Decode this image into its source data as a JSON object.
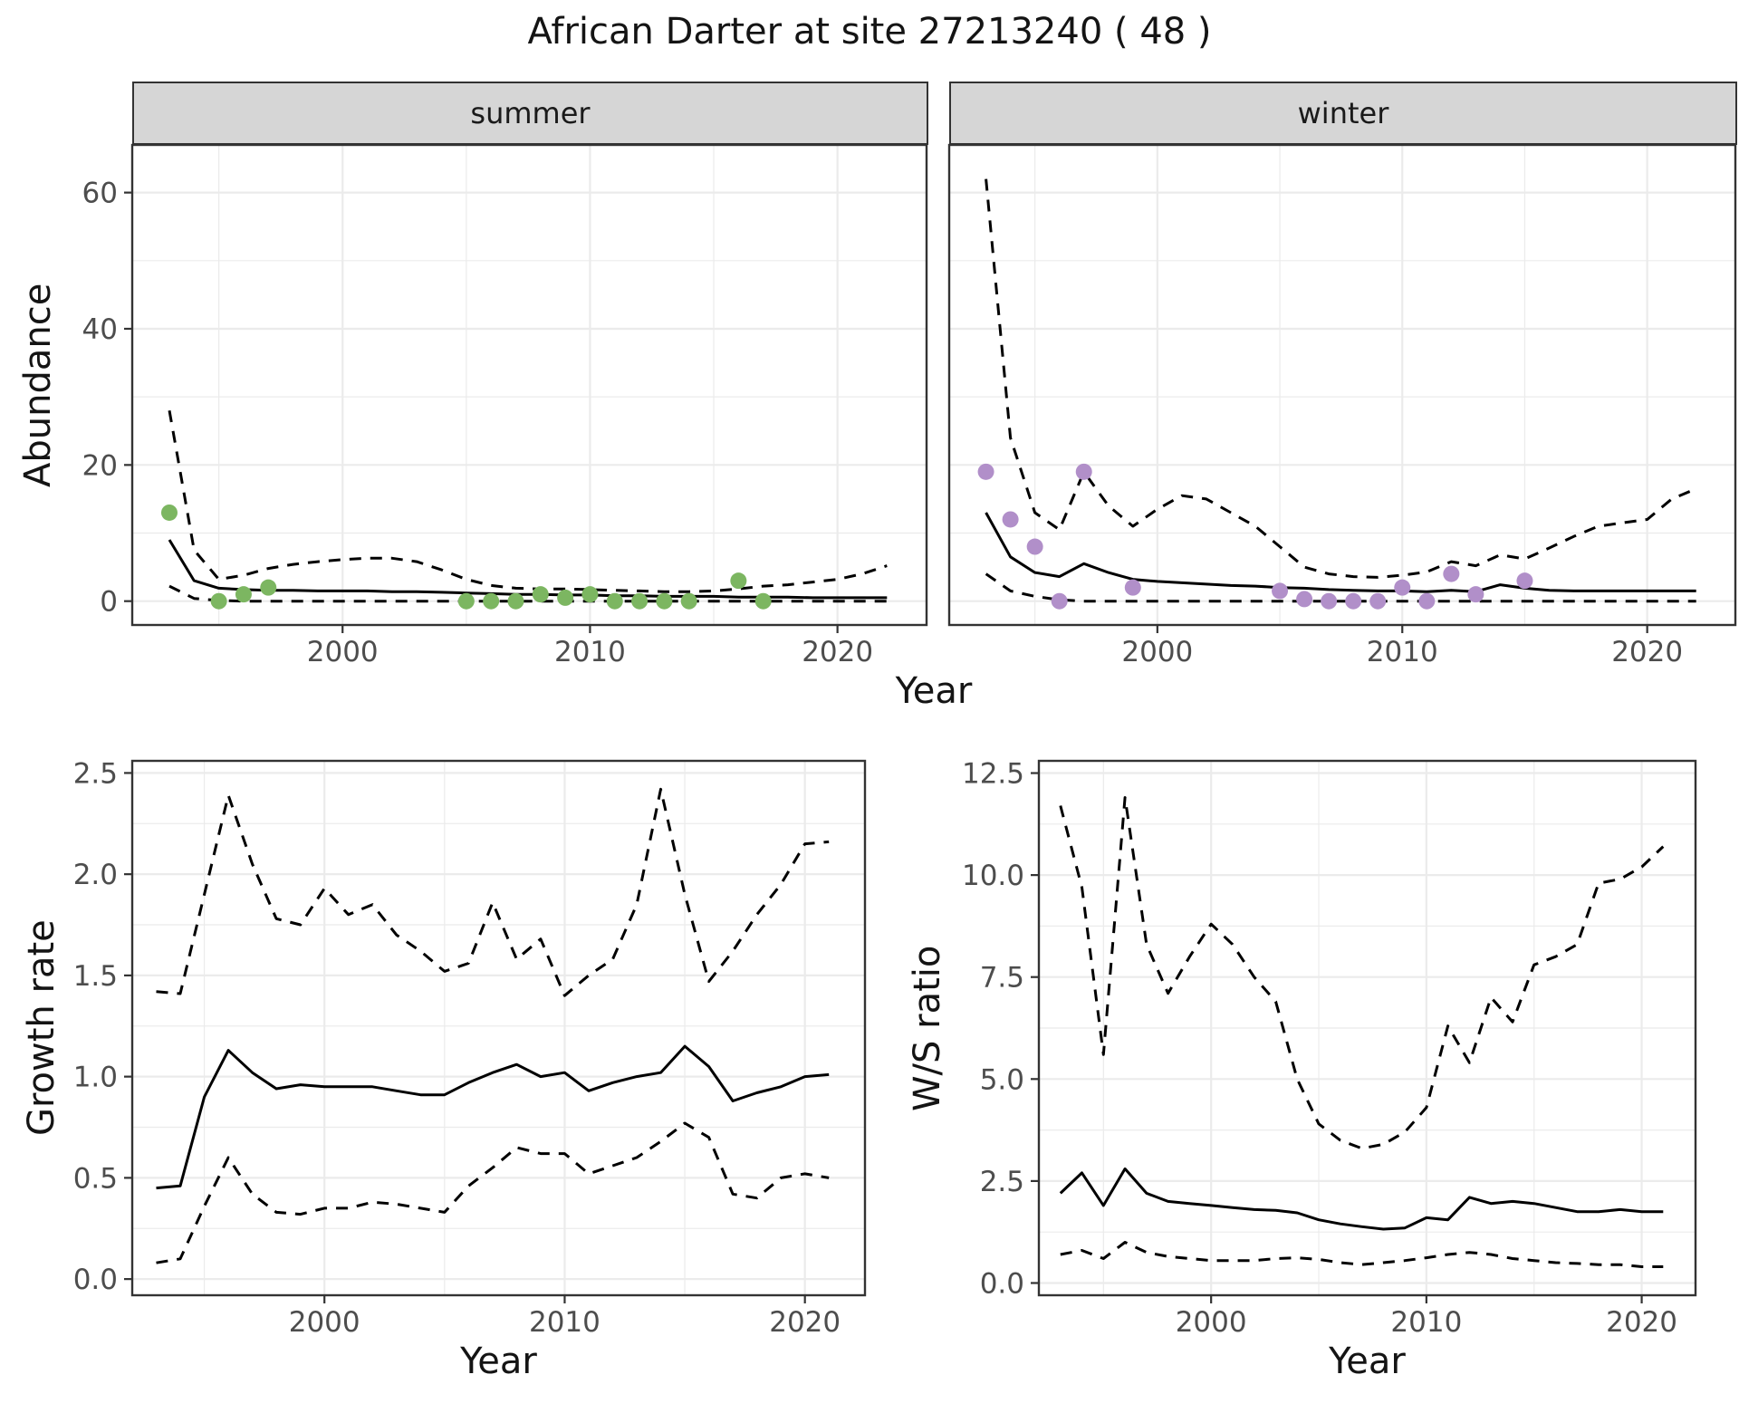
{
  "title": "African Darter at site 27213240 ( 48 )",
  "top": {
    "ylabel": "Abundance",
    "xlabel": "Year",
    "facets": [
      {
        "label": "summer"
      },
      {
        "label": "winter"
      }
    ]
  },
  "bottom_left": {
    "ylabel": "Growth rate",
    "xlabel": "Year"
  },
  "bottom_right": {
    "ylabel": "W/S ratio",
    "xlabel": "Year"
  },
  "colors": {
    "summer_points": "#7CB661",
    "winter_points": "#B18FC9",
    "line": "#000000",
    "grid": "#EBEBEB",
    "panel_border": "#333333",
    "strip_bg": "#D6D6D6",
    "tick_text": "#4D4D4D"
  },
  "chart_data": [
    {
      "id": "abundance-summer",
      "type": "line",
      "facet": "summer",
      "xlabel": "Year",
      "ylabel": "Abundance",
      "xlim": [
        1991.5,
        2023.6
      ],
      "ylim": [
        -3.5,
        67
      ],
      "xticks": [
        2000,
        2010,
        2020
      ],
      "xtick_labels": [
        "2000",
        "2010",
        "2020"
      ],
      "yticks": [
        0,
        20,
        40,
        60
      ],
      "ytick_labels": [
        "0",
        "20",
        "40",
        "60"
      ],
      "show_y_tick_labels": true,
      "x": [
        1993,
        1994,
        1995,
        1996,
        1997,
        1998,
        1999,
        2000,
        2001,
        2002,
        2003,
        2004,
        2005,
        2006,
        2007,
        2008,
        2009,
        2010,
        2011,
        2012,
        2013,
        2014,
        2015,
        2016,
        2017,
        2018,
        2019,
        2020,
        2021,
        2022
      ],
      "series": [
        {
          "name": "fit",
          "style": "solid",
          "values": [
            9,
            3,
            1.9,
            1.7,
            1.6,
            1.6,
            1.5,
            1.5,
            1.5,
            1.4,
            1.4,
            1.3,
            1.2,
            1.1,
            1,
            1,
            0.9,
            0.9,
            0.8,
            0.8,
            0.7,
            0.7,
            0.7,
            0.6,
            0.6,
            0.6,
            0.5,
            0.5,
            0.5,
            0.5
          ]
        },
        {
          "name": "upper_ci",
          "style": "dashed",
          "values": [
            28,
            7.5,
            3.2,
            3.8,
            4.8,
            5.4,
            5.8,
            6.1,
            6.3,
            6.3,
            5.8,
            4.6,
            3.2,
            2.3,
            1.9,
            1.8,
            1.8,
            1.7,
            1.6,
            1.5,
            1.4,
            1.4,
            1.5,
            1.8,
            2.2,
            2.4,
            2.8,
            3.2,
            4,
            5.2
          ]
        },
        {
          "name": "lower_ci",
          "style": "dashed",
          "values": [
            2.2,
            0.4,
            0.1,
            0,
            0,
            0,
            0,
            0,
            0,
            0,
            0,
            0,
            0,
            0,
            0,
            0,
            0,
            0,
            0,
            0,
            0,
            0,
            0,
            0,
            0,
            0,
            0,
            0,
            0,
            0
          ]
        }
      ],
      "points": {
        "name": "observed-counts-summer",
        "color_key": "summer_points",
        "x": [
          1993,
          1995,
          1996,
          1997,
          2005,
          2006,
          2007,
          2008,
          2009,
          2010,
          2011,
          2012,
          2013,
          2014,
          2016,
          2017
        ],
        "y": [
          13,
          0,
          1,
          2,
          0,
          0,
          0,
          1,
          0.5,
          1,
          0,
          0,
          0,
          0,
          3,
          0
        ]
      }
    },
    {
      "id": "abundance-winter",
      "type": "line",
      "facet": "winter",
      "xlabel": "Year",
      "ylabel": "Abundance",
      "xlim": [
        1991.5,
        2023.6
      ],
      "ylim": [
        -3.5,
        67
      ],
      "xticks": [
        2000,
        2010,
        2020
      ],
      "xtick_labels": [
        "2000",
        "2010",
        "2020"
      ],
      "yticks": [
        0,
        20,
        40,
        60
      ],
      "ytick_labels": [
        "0",
        "20",
        "40",
        "60"
      ],
      "show_y_tick_labels": false,
      "x": [
        1993,
        1994,
        1995,
        1996,
        1997,
        1998,
        1999,
        2000,
        2001,
        2002,
        2003,
        2004,
        2005,
        2006,
        2007,
        2008,
        2009,
        2010,
        2011,
        2012,
        2013,
        2014,
        2015,
        2016,
        2017,
        2018,
        2019,
        2020,
        2021,
        2022
      ],
      "series": [
        {
          "name": "fit",
          "style": "solid",
          "values": [
            13,
            6.5,
            4.2,
            3.6,
            5.5,
            4.2,
            3.2,
            2.9,
            2.7,
            2.5,
            2.3,
            2.2,
            2,
            1.9,
            1.7,
            1.6,
            1.5,
            1.5,
            1.4,
            1.6,
            1.4,
            2.4,
            1.9,
            1.6,
            1.5,
            1.5,
            1.5,
            1.5,
            1.5,
            1.5
          ]
        },
        {
          "name": "upper_ci",
          "style": "dashed",
          "values": [
            62,
            24,
            13,
            10.5,
            19,
            14,
            11,
            13.5,
            15.5,
            15,
            13,
            11,
            8,
            5,
            4,
            3.6,
            3.5,
            3.8,
            4.3,
            5.8,
            5.2,
            6.8,
            6.2,
            7.8,
            9.5,
            11,
            11.5,
            12,
            15,
            16.5
          ]
        },
        {
          "name": "lower_ci",
          "style": "dashed",
          "values": [
            4,
            1.5,
            0.7,
            0.2,
            0,
            0,
            0,
            0,
            0,
            0,
            0,
            0,
            0,
            0,
            0,
            0,
            0,
            0,
            0,
            0,
            0,
            0,
            0,
            0,
            0,
            0,
            0,
            0,
            0,
            0
          ]
        }
      ],
      "points": {
        "name": "observed-counts-winter",
        "color_key": "winter_points",
        "x": [
          1993,
          1994,
          1995,
          1996,
          1997,
          1999,
          2005,
          2006,
          2007,
          2008,
          2009,
          2010,
          2011,
          2012,
          2013,
          2015
        ],
        "y": [
          19,
          12,
          8,
          0,
          19,
          2,
          1.5,
          0.3,
          0,
          0,
          0,
          2,
          0,
          4,
          1,
          3
        ]
      }
    },
    {
      "id": "growth-rate",
      "type": "line",
      "xlabel": "Year",
      "ylabel": "Growth rate",
      "xlim": [
        1992,
        2022.5
      ],
      "ylim": [
        -0.08,
        2.56
      ],
      "xticks": [
        2000,
        2010,
        2020
      ],
      "xtick_labels": [
        "2000",
        "2010",
        "2020"
      ],
      "yticks": [
        0,
        0.5,
        1,
        1.5,
        2,
        2.5
      ],
      "ytick_labels": [
        "0.0",
        "0.5",
        "1.0",
        "1.5",
        "2.0",
        "2.5"
      ],
      "show_y_tick_labels": true,
      "x": [
        1993,
        1994,
        1995,
        1996,
        1997,
        1998,
        1999,
        2000,
        2001,
        2002,
        2003,
        2004,
        2005,
        2006,
        2007,
        2008,
        2009,
        2010,
        2011,
        2012,
        2013,
        2014,
        2015,
        2016,
        2017,
        2018,
        2019,
        2020,
        2021
      ],
      "series": [
        {
          "name": "fit",
          "style": "solid",
          "values": [
            0.45,
            0.46,
            0.9,
            1.13,
            1.02,
            0.94,
            0.96,
            0.95,
            0.95,
            0.95,
            0.93,
            0.91,
            0.91,
            0.97,
            1.02,
            1.06,
            1,
            1.02,
            0.93,
            0.97,
            1,
            1.02,
            1.15,
            1.05,
            0.88,
            0.92,
            0.95,
            1,
            1.01
          ]
        },
        {
          "name": "upper_ci",
          "style": "dashed",
          "values": [
            1.42,
            1.41,
            1.9,
            2.39,
            2.05,
            1.78,
            1.75,
            1.93,
            1.8,
            1.85,
            1.7,
            1.62,
            1.52,
            1.56,
            1.86,
            1.58,
            1.68,
            1.4,
            1.5,
            1.58,
            1.85,
            2.42,
            1.9,
            1.47,
            1.62,
            1.8,
            1.95,
            2.15,
            2.16
          ]
        },
        {
          "name": "lower_ci",
          "style": "dashed",
          "values": [
            0.08,
            0.1,
            0.36,
            0.6,
            0.42,
            0.33,
            0.32,
            0.35,
            0.35,
            0.38,
            0.37,
            0.35,
            0.33,
            0.46,
            0.55,
            0.65,
            0.62,
            0.62,
            0.52,
            0.56,
            0.6,
            0.68,
            0.77,
            0.7,
            0.42,
            0.4,
            0.5,
            0.52,
            0.5
          ]
        }
      ]
    },
    {
      "id": "ws-ratio",
      "type": "line",
      "xlabel": "Year",
      "ylabel": "W/S ratio",
      "xlim": [
        1992,
        2022.5
      ],
      "ylim": [
        -0.3,
        12.8
      ],
      "xticks": [
        2000,
        2010,
        2020
      ],
      "xtick_labels": [
        "2000",
        "2010",
        "2020"
      ],
      "yticks": [
        0,
        2.5,
        5,
        7.5,
        10,
        12.5
      ],
      "ytick_labels": [
        "0.0",
        "2.5",
        "5.0",
        "7.5",
        "10.0",
        "12.5"
      ],
      "show_y_tick_labels": true,
      "x": [
        1993,
        1994,
        1995,
        1996,
        1997,
        1998,
        1999,
        2000,
        2001,
        2002,
        2003,
        2004,
        2005,
        2006,
        2007,
        2008,
        2009,
        2010,
        2011,
        2012,
        2013,
        2014,
        2015,
        2016,
        2017,
        2018,
        2019,
        2020,
        2021
      ],
      "series": [
        {
          "name": "fit",
          "style": "solid",
          "values": [
            2.2,
            2.7,
            1.9,
            2.8,
            2.2,
            2,
            1.95,
            1.9,
            1.85,
            1.8,
            1.78,
            1.72,
            1.55,
            1.45,
            1.38,
            1.32,
            1.35,
            1.6,
            1.55,
            2.1,
            1.95,
            2,
            1.95,
            1.85,
            1.75,
            1.75,
            1.8,
            1.75,
            1.75
          ]
        },
        {
          "name": "upper_ci",
          "style": "dashed",
          "values": [
            11.7,
            9.7,
            5.6,
            11.9,
            8.3,
            7.1,
            8,
            8.8,
            8.3,
            7.5,
            6.9,
            5,
            3.9,
            3.5,
            3.3,
            3.4,
            3.7,
            4.3,
            6.3,
            5.4,
            7,
            6.4,
            7.8,
            8,
            8.3,
            9.8,
            9.9,
            10.2,
            10.7
          ]
        },
        {
          "name": "lower_ci",
          "style": "dashed",
          "values": [
            0.7,
            0.8,
            0.6,
            1,
            0.75,
            0.65,
            0.6,
            0.55,
            0.55,
            0.55,
            0.6,
            0.62,
            0.58,
            0.5,
            0.45,
            0.5,
            0.55,
            0.62,
            0.7,
            0.75,
            0.7,
            0.6,
            0.55,
            0.5,
            0.48,
            0.45,
            0.45,
            0.4,
            0.4
          ]
        }
      ]
    }
  ]
}
